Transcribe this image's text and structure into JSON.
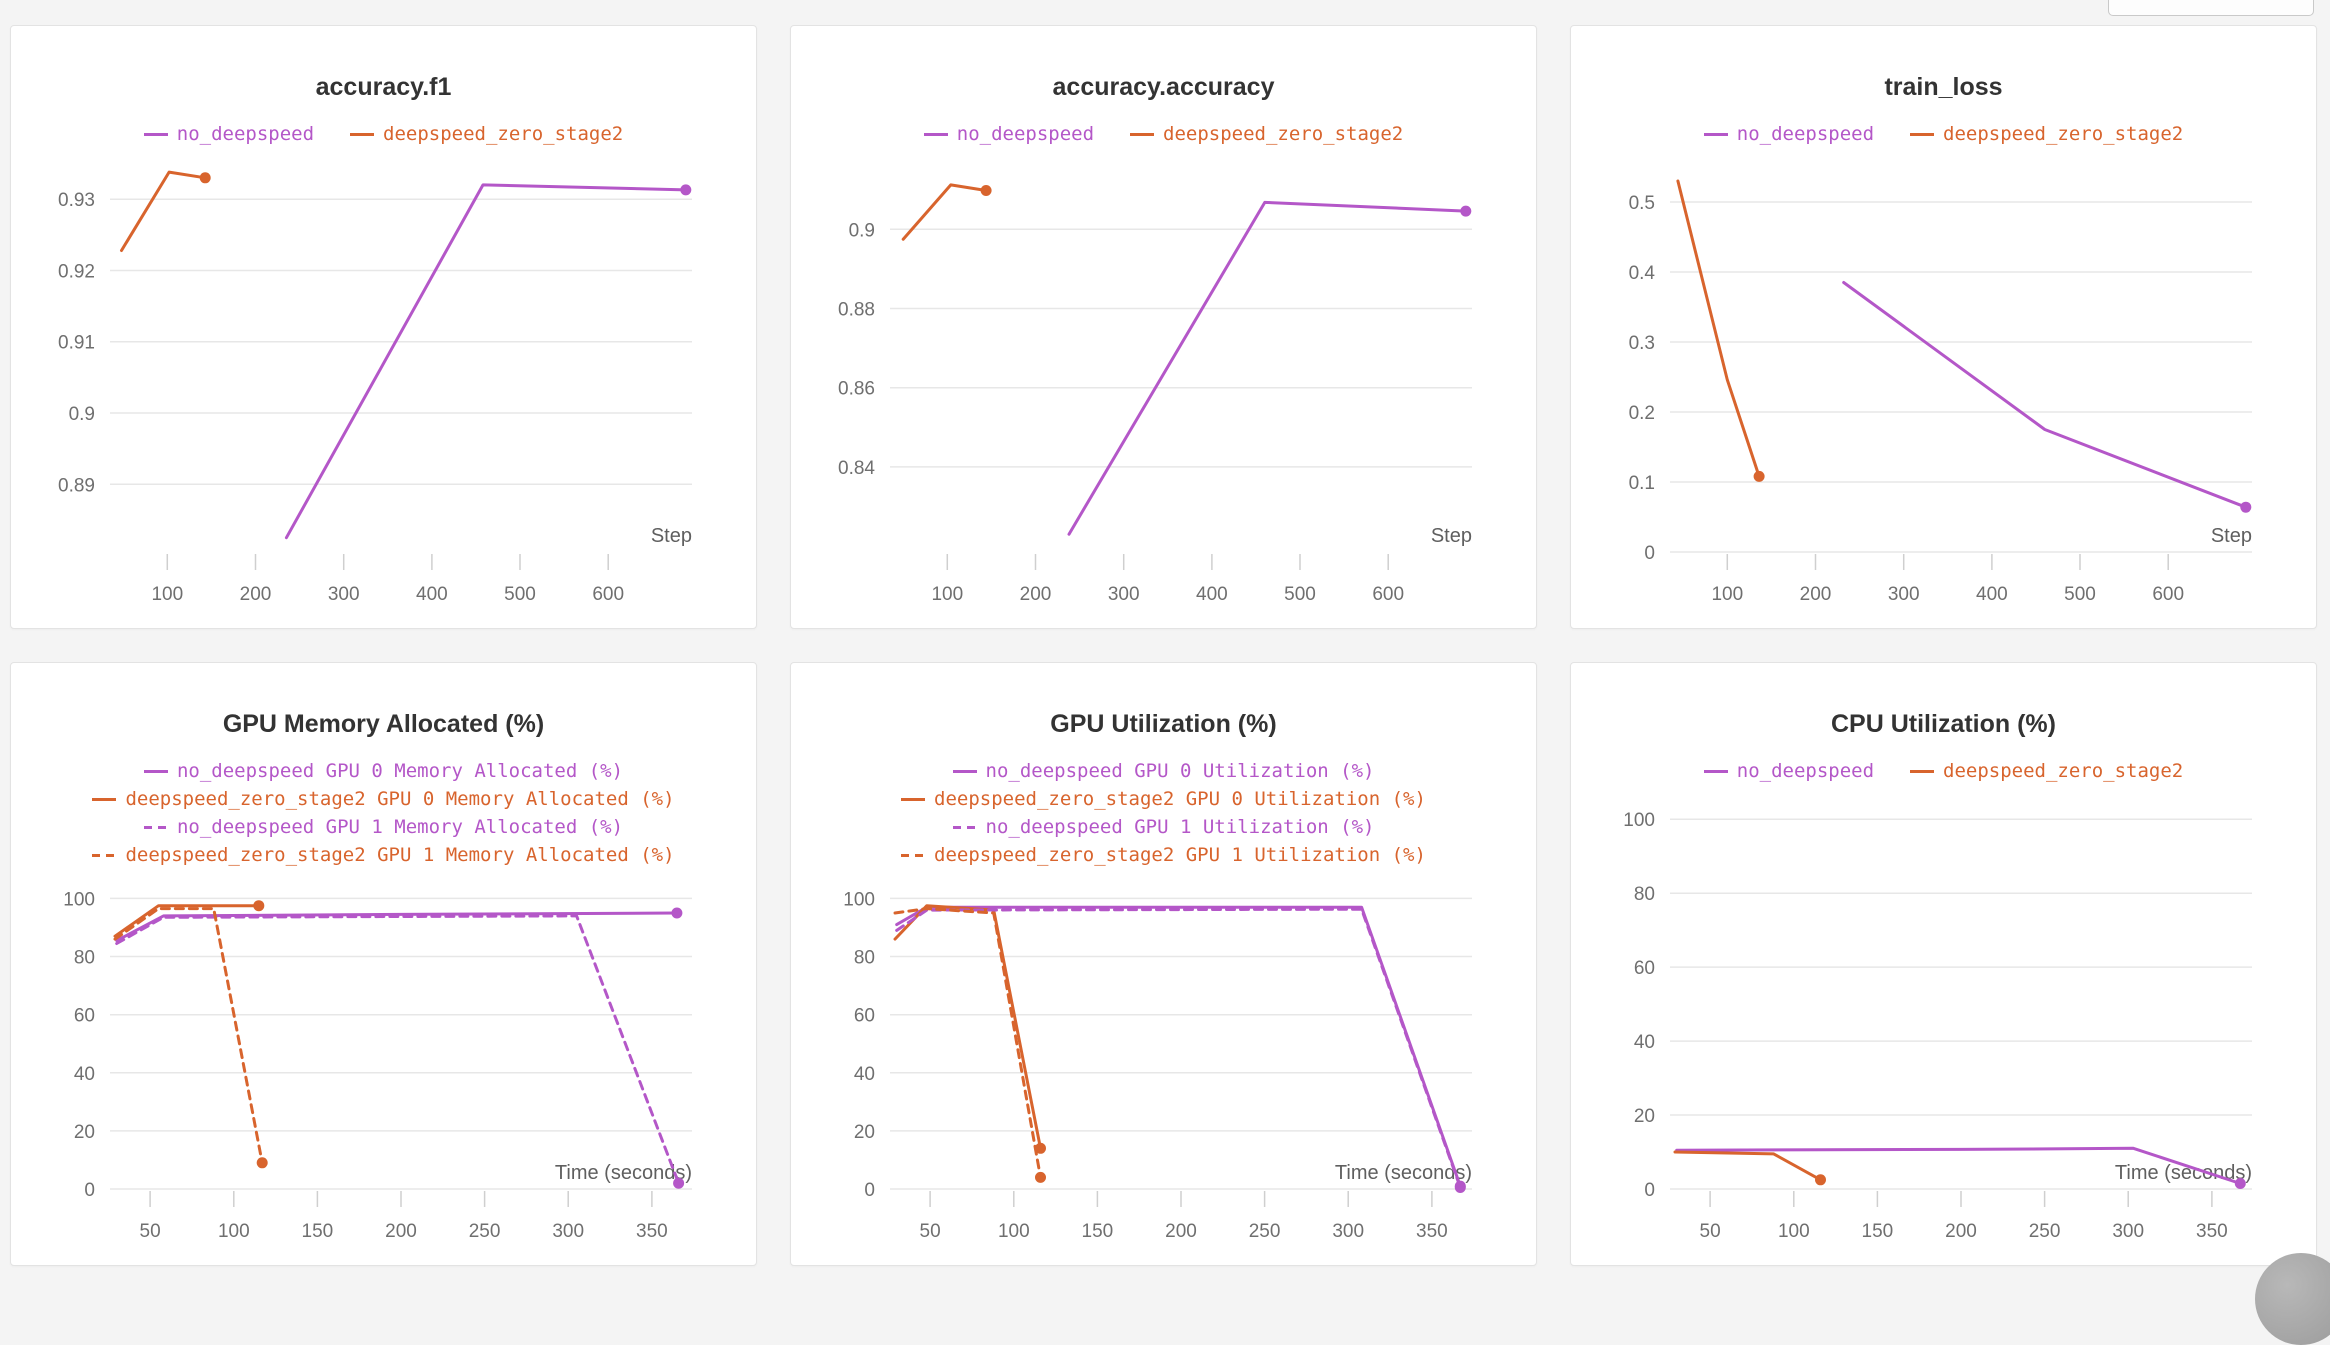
{
  "page": {
    "background": "#f4f4f4"
  },
  "colors": {
    "purple": "#b457c8",
    "orange": "#d8642d",
    "grid": "#e7e7e7",
    "tick": "#cfcfcf",
    "tick_label": "#6f6f6f",
    "axis_label": "#5f5f5f",
    "title": "#333333"
  },
  "chart_data": [
    {
      "type": "line",
      "title": "accuracy.f1",
      "xlabel": "Step",
      "x_ticks": [
        100,
        200,
        300,
        400,
        500,
        600
      ],
      "y_ticks": [
        "0.89",
        "0.9",
        "0.91",
        "0.92",
        "0.93"
      ],
      "xlim": [
        35,
        695
      ],
      "ylim": [
        0.8805,
        0.9355
      ],
      "legend_layout": "row",
      "series": [
        {
          "name": "no_deepspeed",
          "color": "purple",
          "dash": false,
          "end_dot": true,
          "points": [
            [
              235,
              0.8825
            ],
            [
              458,
              0.932
            ],
            [
              688,
              0.9313
            ]
          ]
        },
        {
          "name": "deepspeed_zero_stage2",
          "color": "orange",
          "dash": false,
          "end_dot": true,
          "points": [
            [
              48,
              0.9228
            ],
            [
              102,
              0.9338
            ],
            [
              143,
              0.933
            ]
          ]
        }
      ]
    },
    {
      "type": "line",
      "title": "accuracy.accuracy",
      "xlabel": "Step",
      "x_ticks": [
        100,
        200,
        300,
        400,
        500,
        600
      ],
      "y_ticks": [
        "0.84",
        "0.86",
        "0.88",
        "0.9"
      ],
      "xlim": [
        35,
        695
      ],
      "ylim": [
        0.8185,
        0.9175
      ],
      "legend_layout": "row",
      "series": [
        {
          "name": "no_deepspeed",
          "color": "purple",
          "dash": false,
          "end_dot": true,
          "points": [
            [
              238,
              0.823
            ],
            [
              460,
              0.9068
            ],
            [
              688,
              0.9046
            ]
          ]
        },
        {
          "name": "deepspeed_zero_stage2",
          "color": "orange",
          "dash": false,
          "end_dot": true,
          "points": [
            [
              50,
              0.8975
            ],
            [
              104,
              0.9112
            ],
            [
              144,
              0.9098
            ]
          ]
        }
      ]
    },
    {
      "type": "line",
      "title": "train_loss",
      "xlabel": "Step",
      "x_ticks": [
        100,
        200,
        300,
        400,
        500,
        600
      ],
      "y_ticks": [
        "0",
        "0.1",
        "0.2",
        "0.3",
        "0.4",
        "0.5"
      ],
      "xlim": [
        35,
        695
      ],
      "ylim": [
        0,
        0.56
      ],
      "legend_layout": "row",
      "series": [
        {
          "name": "no_deepspeed",
          "color": "purple",
          "dash": false,
          "end_dot": true,
          "points": [
            [
              232,
              0.385
            ],
            [
              460,
              0.175
            ],
            [
              688,
              0.064
            ]
          ]
        },
        {
          "name": "deepspeed_zero_stage2",
          "color": "orange",
          "dash": false,
          "end_dot": true,
          "points": [
            [
              44,
              0.53
            ],
            [
              100,
              0.246
            ],
            [
              136,
              0.108
            ]
          ]
        }
      ]
    },
    {
      "type": "line",
      "title": "GPU Memory Allocated (%)",
      "xlabel": "Time (seconds)",
      "x_ticks": [
        50,
        100,
        150,
        200,
        250,
        300,
        350
      ],
      "y_ticks": [
        "0",
        "20",
        "40",
        "60",
        "80",
        "100"
      ],
      "xlim": [
        26,
        374
      ],
      "ylim": [
        0,
        106
      ],
      "legend_layout": "column",
      "series": [
        {
          "name": "no_deepspeed GPU 0 Memory Allocated (%)",
          "color": "purple",
          "dash": false,
          "end_dot": true,
          "points": [
            [
              30,
              85.5
            ],
            [
              58,
              94
            ],
            [
              200,
              94.5
            ],
            [
              365,
              95
            ]
          ]
        },
        {
          "name": "deepspeed_zero_stage2 GPU 0 Memory Allocated (%)",
          "color": "orange",
          "dash": false,
          "end_dot": true,
          "points": [
            [
              29,
              87
            ],
            [
              55,
              97.5
            ],
            [
              115,
              97.5
            ]
          ]
        },
        {
          "name": "no_deepspeed GPU 1 Memory Allocated (%)",
          "color": "purple",
          "dash": true,
          "end_dot": true,
          "points": [
            [
              30,
              84.5
            ],
            [
              58,
              93.5
            ],
            [
              305,
              94
            ],
            [
              366,
              2
            ]
          ]
        },
        {
          "name": "deepspeed_zero_stage2 GPU 1 Memory Allocated (%)",
          "color": "orange",
          "dash": true,
          "end_dot": true,
          "points": [
            [
              29,
              86
            ],
            [
              55,
              96.5
            ],
            [
              88,
              96.5
            ],
            [
              117,
              9
            ]
          ]
        }
      ]
    },
    {
      "type": "line",
      "title": "GPU Utilization (%)",
      "xlabel": "Time (seconds)",
      "x_ticks": [
        50,
        100,
        150,
        200,
        250,
        300,
        350
      ],
      "y_ticks": [
        "0",
        "20",
        "40",
        "60",
        "80",
        "100"
      ],
      "xlim": [
        26,
        374
      ],
      "ylim": [
        0,
        106
      ],
      "legend_layout": "column",
      "series": [
        {
          "name": "no_deepspeed GPU 0 Utilization (%)",
          "color": "purple",
          "dash": false,
          "end_dot": true,
          "points": [
            [
              30,
              91
            ],
            [
              48,
              97
            ],
            [
              308,
              97
            ],
            [
              367,
              1
            ]
          ]
        },
        {
          "name": "deepspeed_zero_stage2 GPU 0 Utilization (%)",
          "color": "orange",
          "dash": false,
          "end_dot": true,
          "points": [
            [
              29,
              86
            ],
            [
              48,
              97.5
            ],
            [
              88,
              96
            ],
            [
              116,
              14
            ]
          ]
        },
        {
          "name": "no_deepspeed GPU 1 Utilization (%)",
          "color": "purple",
          "dash": true,
          "end_dot": true,
          "points": [
            [
              30,
              89
            ],
            [
              48,
              96
            ],
            [
              308,
              96.3
            ],
            [
              367,
              0.5
            ]
          ]
        },
        {
          "name": "deepspeed_zero_stage2 GPU 1 Utilization (%)",
          "color": "orange",
          "dash": true,
          "end_dot": true,
          "points": [
            [
              29,
              95
            ],
            [
              48,
              96.5
            ],
            [
              88,
              95
            ],
            [
              116,
              4
            ]
          ]
        }
      ]
    },
    {
      "type": "line",
      "title": "CPU Utilization (%)",
      "xlabel": "Time (seconds)",
      "x_ticks": [
        50,
        100,
        150,
        200,
        250,
        300,
        350
      ],
      "y_ticks": [
        "0",
        "20",
        "40",
        "60",
        "80",
        "100"
      ],
      "xlim": [
        26,
        374
      ],
      "ylim": [
        0,
        106
      ],
      "legend_layout": "row",
      "series": [
        {
          "name": "no_deepspeed",
          "color": "purple",
          "dash": false,
          "end_dot": true,
          "points": [
            [
              30,
              10.5
            ],
            [
              200,
              10.7
            ],
            [
              303,
              11
            ],
            [
              367,
              1.5
            ]
          ]
        },
        {
          "name": "deepspeed_zero_stage2",
          "color": "orange",
          "dash": false,
          "end_dot": true,
          "points": [
            [
              29,
              10
            ],
            [
              88,
              9.5
            ],
            [
              116,
              2.5
            ]
          ]
        }
      ]
    }
  ]
}
